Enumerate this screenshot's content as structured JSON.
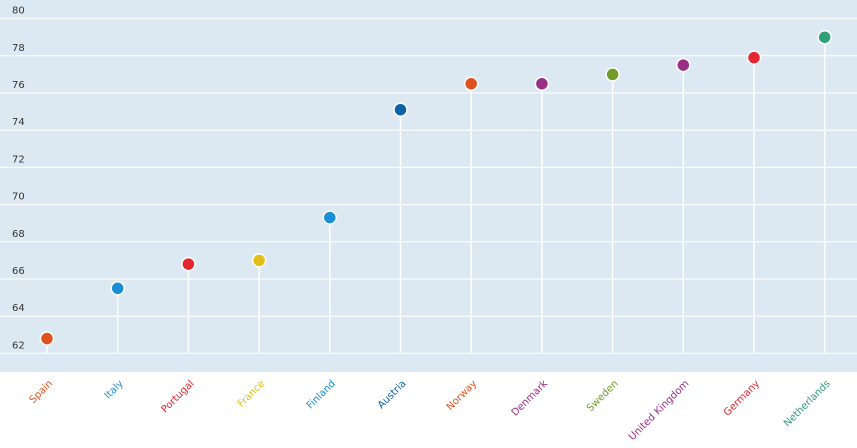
{
  "chart_data": {
    "type": "lollipop",
    "categories": [
      "Spain",
      "Italy",
      "Portugal",
      "France",
      "Finland",
      "Austria",
      "Norway",
      "Denmark",
      "Sweden",
      "United Kingdom",
      "Germany",
      "Netherlands"
    ],
    "values": [
      62.8,
      65.5,
      66.8,
      67.0,
      69.3,
      75.1,
      76.5,
      76.5,
      77.0,
      77.5,
      77.9,
      79.0
    ],
    "colors": [
      "#e0521d",
      "#1b8fd6",
      "#e4262e",
      "#e3be16",
      "#1b8fd6",
      "#0d62a6",
      "#e0521d",
      "#993085",
      "#6f9d27",
      "#993085",
      "#e4262e",
      "#2ea07a"
    ],
    "ylim": [
      61,
      81
    ],
    "yticks": [
      62,
      64,
      66,
      68,
      70,
      72,
      74,
      76,
      78,
      80
    ],
    "grid": true
  }
}
